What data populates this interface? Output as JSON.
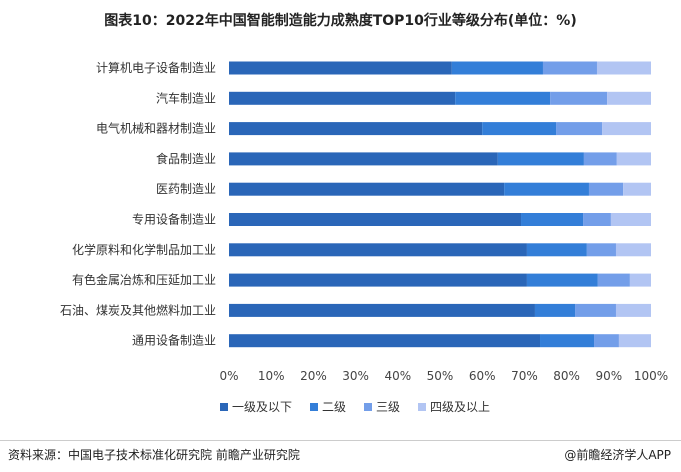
{
  "chart_data": {
    "type": "bar",
    "orientation": "horizontal",
    "stacked": true,
    "title": "图表10：2022年中国智能制造能力成熟度TOP10行业等级分布(单位：%)",
    "categories": [
      "计算机电子设备制造业",
      "汽车制造业",
      "电气机械和器材制造业",
      "食品制造业",
      "医药制造业",
      "专用设备制造业",
      "化学原料和化学制品加工业",
      "有色金属冶炼和压延加工业",
      "石油、煤炭及其他燃料加工业",
      "通用设备制造业"
    ],
    "series": [
      {
        "name": "一级及以下",
        "color": "#2a66b8",
        "values": [
          52.8,
          53.6,
          60.0,
          63.7,
          65.2,
          69.2,
          70.6,
          70.6,
          72.5,
          73.7
        ]
      },
      {
        "name": "二级",
        "color": "#337ed8",
        "values": [
          21.6,
          22.5,
          17.5,
          20.4,
          20.1,
          14.7,
          14.2,
          16.8,
          9.5,
          12.8
        ]
      },
      {
        "name": "三级",
        "color": "#739ee9",
        "values": [
          12.8,
          13.5,
          10.9,
          7.8,
          8.1,
          6.6,
          6.9,
          7.6,
          9.7,
          5.9
        ]
      },
      {
        "name": "四级及以上",
        "color": "#b2c5f3",
        "values": [
          12.8,
          10.4,
          11.6,
          8.1,
          6.6,
          9.5,
          8.3,
          5.0,
          8.3,
          7.6
        ]
      }
    ],
    "xlim": [
      0,
      100
    ],
    "xticks": [
      "0%",
      "10%",
      "20%",
      "30%",
      "40%",
      "50%",
      "60%",
      "70%",
      "80%",
      "90%",
      "100%"
    ],
    "grid": false,
    "legend_position": "bottom"
  },
  "footer": {
    "source": "资料来源：中国电子技术标准化研究院 前瞻产业研究院",
    "brand": "@前瞻经济学人APP"
  }
}
